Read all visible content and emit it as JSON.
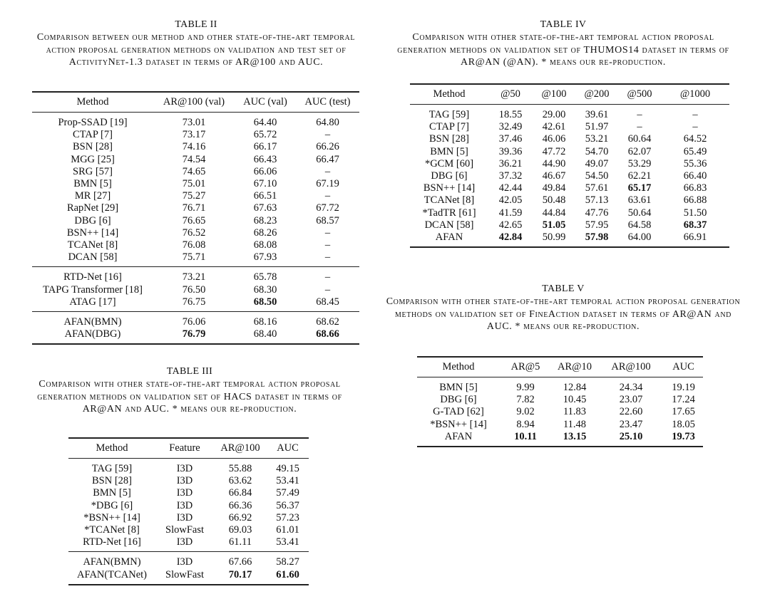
{
  "tables": [
    {
      "id": "t2",
      "title": "TABLE II",
      "caption": "Comparison between our method and other state-of-the-art temporal action proposal generation methods on validation and test set of ActivityNet-1.3 dataset in terms of AR@100 and AUC.",
      "columns": [
        "Method",
        "AR@100 (val)",
        "AUC (val)",
        "AUC (test)"
      ],
      "groups": [
        [
          [
            "Prop-SSAD [19]",
            "73.01",
            "64.40",
            "64.80"
          ],
          [
            "CTAP [7]",
            "73.17",
            "65.72",
            "–"
          ],
          [
            "BSN [28]",
            "74.16",
            "66.17",
            "66.26"
          ],
          [
            "MGG [25]",
            "74.54",
            "66.43",
            "66.47"
          ],
          [
            "SRG [57]",
            "74.65",
            "66.06",
            "–"
          ],
          [
            "BMN [5]",
            "75.01",
            "67.10",
            "67.19"
          ],
          [
            "MR [27]",
            "75.27",
            "66.51",
            "–"
          ],
          [
            "RapNet [29]",
            "76.71",
            "67.63",
            "67.72"
          ],
          [
            "DBG [6]",
            "76.65",
            "68.23",
            "68.57"
          ],
          [
            "BSN++ [14]",
            "76.52",
            "68.26",
            "–"
          ],
          [
            "TCANet [8]",
            "76.08",
            "68.08",
            "–"
          ],
          [
            "DCAN [58]",
            "75.71",
            "67.93",
            "–"
          ]
        ],
        [
          [
            "RTD-Net [16]",
            "73.21",
            "65.78",
            "–"
          ],
          [
            "TAPG Transformer [18]",
            "76.50",
            "68.30",
            "–"
          ],
          [
            "ATAG [17]",
            "76.75",
            "68.50",
            "68.45"
          ]
        ],
        [
          [
            "AFAN(BMN)",
            "76.06",
            "68.16",
            "68.62"
          ],
          [
            "AFAN(DBG)",
            "76.79",
            "68.40",
            "68.66"
          ]
        ]
      ],
      "bold": [
        [
          1,
          2,
          2
        ],
        [
          2,
          1,
          1
        ],
        [
          2,
          1,
          3
        ]
      ]
    },
    {
      "id": "t4",
      "title": "TABLE IV",
      "caption": "Comparison with other state-of-the-art temporal action proposal generation methods on validation set of THUMOS14 dataset in terms of AR@AN (@AN). * means our re-production.",
      "columns": [
        "Method",
        "@50",
        "@100",
        "@200",
        "@500",
        "@1000"
      ],
      "groups": [
        [
          [
            "TAG [59]",
            "18.55",
            "29.00",
            "39.61",
            "–",
            "–"
          ],
          [
            "CTAP [7]",
            "32.49",
            "42.61",
            "51.97",
            "–",
            "–"
          ],
          [
            "BSN [28]",
            "37.46",
            "46.06",
            "53.21",
            "60.64",
            "64.52"
          ],
          [
            "BMN [5]",
            "39.36",
            "47.72",
            "54.70",
            "62.07",
            "65.49"
          ],
          [
            "*GCM [60]",
            "36.21",
            "44.90",
            "49.07",
            "53.29",
            "55.36"
          ],
          [
            "DBG [6]",
            "37.32",
            "46.67",
            "54.50",
            "62.21",
            "66.40"
          ],
          [
            "BSN++ [14]",
            "42.44",
            "49.84",
            "57.61",
            "65.17",
            "66.83"
          ],
          [
            "TCANet [8]",
            "42.05",
            "50.48",
            "57.13",
            "63.61",
            "66.88"
          ],
          [
            "*TadTR [61]",
            "41.59",
            "44.84",
            "47.76",
            "50.64",
            "51.50"
          ],
          [
            "DCAN [58]",
            "42.65",
            "51.05",
            "57.95",
            "64.58",
            "68.37"
          ],
          [
            "AFAN",
            "42.84",
            "50.99",
            "57.98",
            "64.00",
            "66.91"
          ]
        ]
      ],
      "bold": [
        [
          0,
          6,
          4
        ],
        [
          0,
          9,
          2
        ],
        [
          0,
          9,
          5
        ],
        [
          0,
          10,
          1
        ],
        [
          0,
          10,
          3
        ]
      ]
    },
    {
      "id": "t5",
      "title": "TABLE V",
      "caption": "Comparison with other state-of-the-art temporal action proposal generation methods on validation set of FineAction dataset in terms of AR@AN and AUC. * means our re-production.",
      "columns": [
        "Method",
        "AR@5",
        "AR@10",
        "AR@100",
        "AUC"
      ],
      "groups": [
        [
          [
            "BMN [5]",
            "9.99",
            "12.84",
            "24.34",
            "19.19"
          ],
          [
            "DBG [6]",
            "7.82",
            "10.45",
            "23.07",
            "17.24"
          ],
          [
            "G-TAD [62]",
            "9.02",
            "11.83",
            "22.60",
            "17.65"
          ],
          [
            "*BSN++ [14]",
            "8.94",
            "11.48",
            "23.47",
            "18.05"
          ],
          [
            "AFAN",
            "10.11",
            "13.15",
            "25.10",
            "19.73"
          ]
        ]
      ],
      "bold": [
        [
          0,
          4,
          1
        ],
        [
          0,
          4,
          2
        ],
        [
          0,
          4,
          3
        ],
        [
          0,
          4,
          4
        ]
      ]
    },
    {
      "id": "t3",
      "title": "TABLE III",
      "caption": "Comparison with other state-of-the-art temporal action proposal generation methods on validation set of HACS dataset in terms of AR@AN and AUC. * means our re-production.",
      "columns": [
        "Method",
        "Feature",
        "AR@100",
        "AUC"
      ],
      "groups": [
        [
          [
            "TAG [59]",
            "I3D",
            "55.88",
            "49.15"
          ],
          [
            "BSN [28]",
            "I3D",
            "63.62",
            "53.41"
          ],
          [
            "BMN [5]",
            "I3D",
            "66.84",
            "57.49"
          ],
          [
            "*DBG [6]",
            "I3D",
            "66.36",
            "56.37"
          ],
          [
            "*BSN++ [14]",
            "I3D",
            "66.92",
            "57.23"
          ],
          [
            "*TCANet [8]",
            "SlowFast",
            "69.03",
            "61.01"
          ],
          [
            "RTD-Net [16]",
            "I3D",
            "61.11",
            "53.41"
          ]
        ],
        [
          [
            "AFAN(BMN)",
            "I3D",
            "67.66",
            "58.27"
          ],
          [
            "AFAN(TCANet)",
            "SlowFast",
            "70.17",
            "61.60"
          ]
        ]
      ],
      "bold": [
        [
          1,
          1,
          2
        ],
        [
          1,
          1,
          3
        ]
      ]
    }
  ]
}
